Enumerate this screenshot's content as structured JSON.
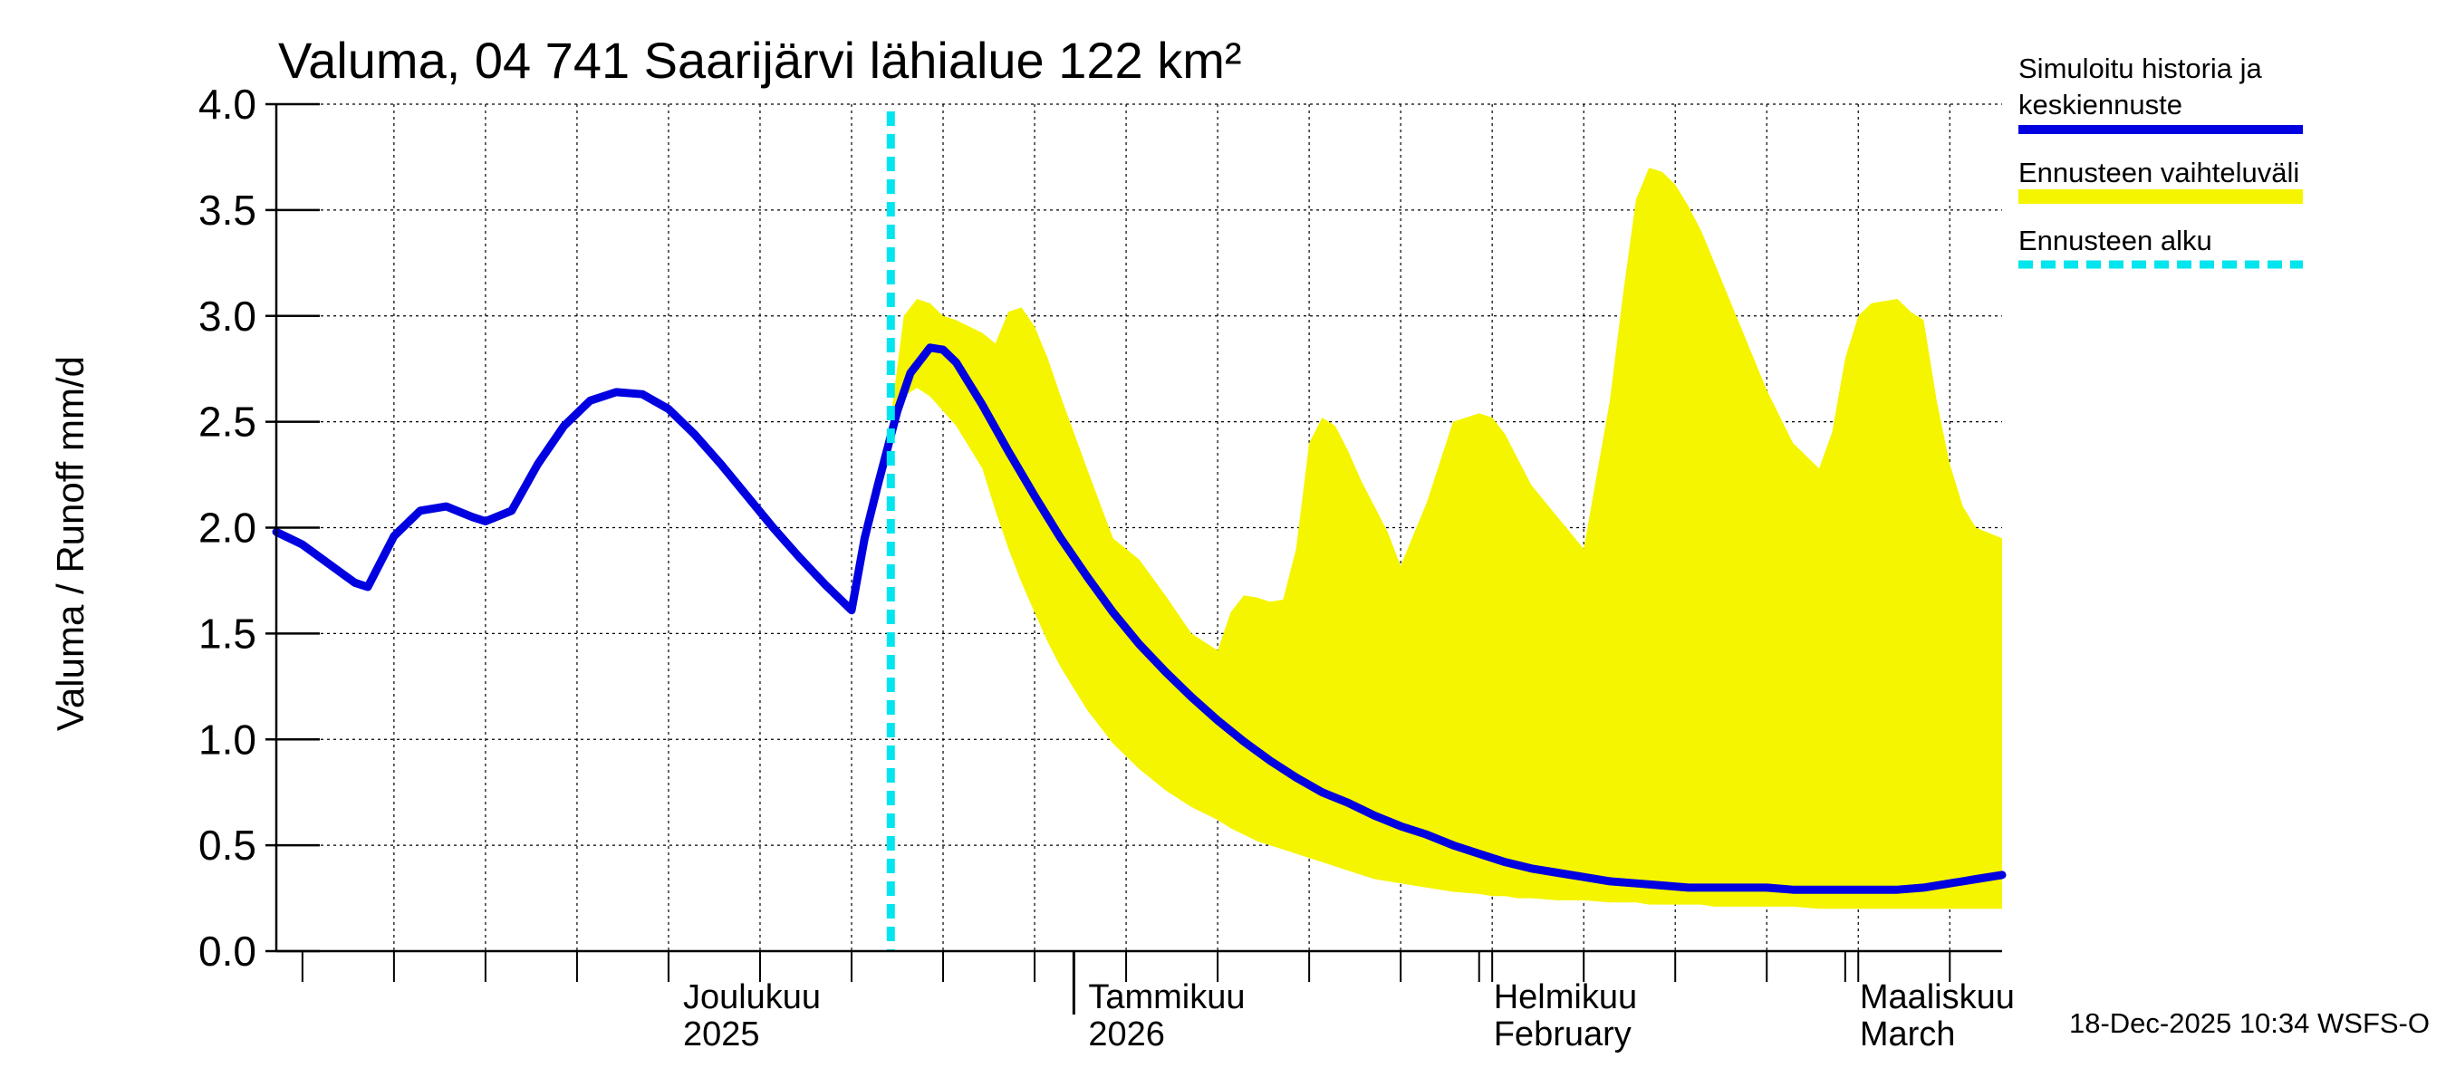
{
  "chart_data": {
    "type": "area",
    "title": "Valuma, 04 741 Saarijärvi lähialue 122 km²",
    "ylabel": "Valuma / Runoff    mm/d",
    "ylim": [
      0,
      4.0
    ],
    "yticks": [
      "0.0",
      "0.5",
      "1.0",
      "1.5",
      "2.0",
      "2.5",
      "3.0",
      "3.5",
      "4.0"
    ],
    "x_unit": "days since 2025-11-01",
    "xlim": [
      0,
      132
    ],
    "month_labels": [
      {
        "day": 30,
        "line1": "Joulukuu",
        "line2": "2025",
        "year_start": false
      },
      {
        "day": 61,
        "line1": "Tammikuu",
        "line2": "2026",
        "year_start": true
      },
      {
        "day": 92,
        "line1": "Helmikuu",
        "line2": "February",
        "year_start": false
      },
      {
        "day": 120,
        "line1": "Maaliskuu",
        "line2": "March",
        "year_start": false
      }
    ],
    "forecast_start_day": 47,
    "colors": {
      "history": "#0000e0",
      "band": "#f5f500",
      "forecast_start": "#00e5ee",
      "grid": "#000000"
    },
    "series": [
      {
        "name": "Simuloitu historia ja keskiennuste",
        "x": [
          0,
          2,
          4,
          6,
          7,
          9,
          11,
          13,
          15,
          16,
          18,
          20,
          22,
          24,
          26,
          28,
          30,
          32,
          34,
          36,
          38,
          40,
          42,
          44,
          45,
          46,
          47.5,
          48.5,
          50,
          51,
          52,
          54,
          56,
          58,
          60,
          62,
          64,
          66,
          68,
          70,
          72,
          74,
          76,
          78,
          80,
          82,
          84,
          86,
          88,
          90,
          92,
          94,
          96,
          98,
          100,
          102,
          104,
          106,
          108,
          110,
          112,
          114,
          116,
          118,
          120,
          122,
          124,
          126,
          128,
          129,
          130,
          132
        ],
        "values": [
          1.98,
          1.92,
          1.83,
          1.74,
          1.72,
          1.96,
          2.08,
          2.1,
          2.05,
          2.03,
          2.08,
          2.3,
          2.48,
          2.6,
          2.64,
          2.63,
          2.56,
          2.44,
          2.3,
          2.15,
          2.0,
          1.86,
          1.73,
          1.61,
          1.95,
          2.2,
          2.55,
          2.73,
          2.85,
          2.84,
          2.78,
          2.58,
          2.36,
          2.15,
          1.95,
          1.77,
          1.6,
          1.45,
          1.32,
          1.2,
          1.09,
          0.99,
          0.9,
          0.82,
          0.75,
          0.7,
          0.64,
          0.59,
          0.55,
          0.5,
          0.46,
          0.42,
          0.39,
          0.37,
          0.35,
          0.33,
          0.32,
          0.31,
          0.3,
          0.3,
          0.3,
          0.3,
          0.29,
          0.29,
          0.29,
          0.29,
          0.29,
          0.3,
          0.32,
          0.33,
          0.34,
          0.36
        ]
      },
      {
        "name": "Ennusteen vaihteluväli",
        "x": [
          47,
          48,
          49,
          50,
          51,
          52,
          54,
          55,
          56,
          57,
          58,
          59,
          60,
          62,
          64,
          66,
          68,
          70,
          72,
          73,
          74,
          75,
          76,
          77,
          78,
          79,
          80,
          81,
          82,
          83,
          84,
          85,
          86,
          88,
          90,
          92,
          93,
          94,
          95,
          96,
          98,
          100,
          102,
          103,
          104,
          105,
          106,
          107,
          108,
          109,
          110,
          112,
          114,
          116,
          118,
          119,
          120,
          121,
          122,
          124,
          125,
          126,
          127,
          128,
          129,
          130,
          132
        ],
        "upper": [
          2.52,
          3.0,
          3.08,
          3.06,
          3.0,
          2.98,
          2.92,
          2.87,
          3.02,
          3.04,
          2.95,
          2.8,
          2.62,
          2.28,
          1.95,
          1.85,
          1.68,
          1.5,
          1.42,
          1.6,
          1.68,
          1.67,
          1.65,
          1.66,
          1.9,
          2.4,
          2.52,
          2.48,
          2.36,
          2.22,
          2.1,
          1.98,
          1.82,
          2.12,
          2.5,
          2.54,
          2.52,
          2.44,
          2.32,
          2.2,
          2.05,
          1.9,
          2.6,
          3.1,
          3.55,
          3.7,
          3.68,
          3.62,
          3.52,
          3.4,
          3.25,
          2.95,
          2.65,
          2.4,
          2.28,
          2.45,
          2.8,
          3.0,
          3.06,
          3.08,
          3.02,
          2.98,
          2.6,
          2.3,
          2.1,
          2.0,
          1.95
        ],
        "lower": [
          2.45,
          2.62,
          2.66,
          2.62,
          2.55,
          2.48,
          2.28,
          2.08,
          1.9,
          1.74,
          1.6,
          1.46,
          1.34,
          1.14,
          0.98,
          0.86,
          0.76,
          0.68,
          0.62,
          0.58,
          0.55,
          0.52,
          0.5,
          0.48,
          0.46,
          0.44,
          0.42,
          0.4,
          0.38,
          0.36,
          0.34,
          0.33,
          0.32,
          0.3,
          0.28,
          0.27,
          0.26,
          0.26,
          0.25,
          0.25,
          0.24,
          0.24,
          0.23,
          0.23,
          0.23,
          0.22,
          0.22,
          0.22,
          0.22,
          0.22,
          0.21,
          0.21,
          0.21,
          0.21,
          0.2,
          0.2,
          0.2,
          0.2,
          0.2,
          0.2,
          0.2,
          0.2,
          0.2,
          0.2,
          0.2,
          0.2,
          0.2
        ]
      }
    ]
  },
  "legend": {
    "history_line1": "Simuloitu historia ja",
    "history_line2": "keskiennuste",
    "band": "Ennusteen vaihteluväli",
    "forecast_start": "Ennusteen alku"
  },
  "footer": "18-Dec-2025 10:34 WSFS-O"
}
